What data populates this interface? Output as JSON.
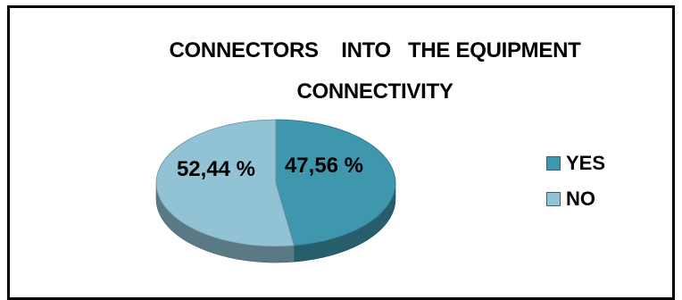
{
  "chart_data": {
    "type": "pie",
    "title": "CONNECTORS    INTO   THE EQUIPMENT\nCONNECTIVITY",
    "slices": [
      {
        "label": "YES",
        "value": 47.56,
        "display": "47,56 %",
        "color": "#3f97ae"
      },
      {
        "label": "NO",
        "value": 52.44,
        "display": "52,44 %",
        "color": "#92c3d5"
      }
    ],
    "legend_position": "right",
    "three_d": true
  }
}
